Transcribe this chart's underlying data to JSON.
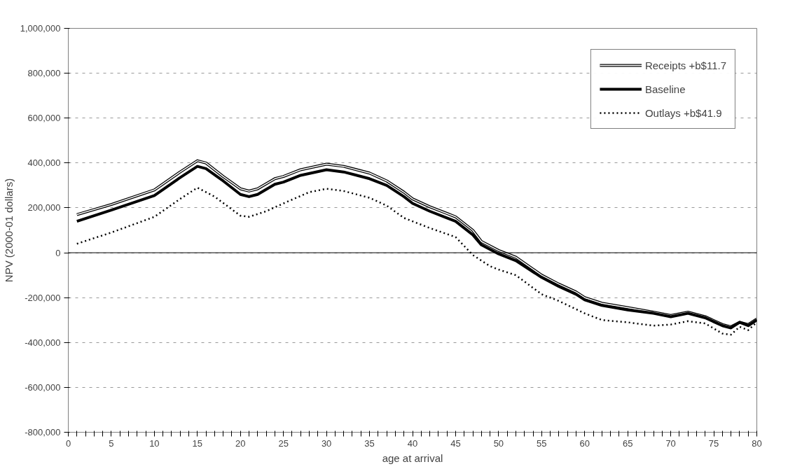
{
  "chart_data": {
    "type": "line",
    "xlabel": "age at arrival",
    "ylabel": "NPV (2000-01 dollars)",
    "xlim": [
      0,
      80
    ],
    "ylim": [
      -800000,
      1000000
    ],
    "xticks": [
      0,
      {
        "value": 1,
        "label": null
      },
      {
        "value": 2,
        "label": null
      },
      {
        "value": 3,
        "label": null
      },
      {
        "value": 4,
        "label": null
      },
      5,
      {
        "value": 6,
        "label": null
      },
      {
        "value": 7,
        "label": null
      },
      {
        "value": 8,
        "label": null
      },
      {
        "value": 9,
        "label": null
      },
      10,
      {
        "value": 11,
        "label": null
      },
      {
        "value": 12,
        "label": null
      },
      {
        "value": 13,
        "label": null
      },
      {
        "value": 14,
        "label": null
      },
      15,
      {
        "value": 16,
        "label": null
      },
      {
        "value": 17,
        "label": null
      },
      {
        "value": 18,
        "label": null
      },
      {
        "value": 19,
        "label": null
      },
      20,
      {
        "value": 21,
        "label": null
      },
      {
        "value": 22,
        "label": null
      },
      {
        "value": 23,
        "label": null
      },
      {
        "value": 24,
        "label": null
      },
      25,
      {
        "value": 26,
        "label": null
      },
      {
        "value": 27,
        "label": null
      },
      {
        "value": 28,
        "label": null
      },
      {
        "value": 29,
        "label": null
      },
      30,
      {
        "value": 31,
        "label": null
      },
      {
        "value": 32,
        "label": null
      },
      {
        "value": 33,
        "label": null
      },
      {
        "value": 34,
        "label": null
      },
      35,
      {
        "value": 36,
        "label": null
      },
      {
        "value": 37,
        "label": null
      },
      {
        "value": 38,
        "label": null
      },
      {
        "value": 39,
        "label": null
      },
      40,
      {
        "value": 41,
        "label": null
      },
      {
        "value": 42,
        "label": null
      },
      {
        "value": 43,
        "label": null
      },
      {
        "value": 44,
        "label": null
      },
      45,
      {
        "value": 46,
        "label": null
      },
      {
        "value": 47,
        "label": null
      },
      {
        "value": 48,
        "label": null
      },
      {
        "value": 49,
        "label": null
      },
      50,
      {
        "value": 51,
        "label": null
      },
      {
        "value": 52,
        "label": null
      },
      {
        "value": 53,
        "label": null
      },
      {
        "value": 54,
        "label": null
      },
      55,
      {
        "value": 56,
        "label": null
      },
      {
        "value": 57,
        "label": null
      },
      {
        "value": 58,
        "label": null
      },
      {
        "value": 59,
        "label": null
      },
      60,
      {
        "value": 61,
        "label": null
      },
      {
        "value": 62,
        "label": null
      },
      {
        "value": 63,
        "label": null
      },
      {
        "value": 64,
        "label": null
      },
      65,
      {
        "value": 66,
        "label": null
      },
      {
        "value": 67,
        "label": null
      },
      {
        "value": 68,
        "label": null
      },
      {
        "value": 69,
        "label": null
      },
      70,
      {
        "value": 71,
        "label": null
      },
      {
        "value": 72,
        "label": null
      },
      {
        "value": 73,
        "label": null
      },
      {
        "value": 74,
        "label": null
      },
      75,
      {
        "value": 76,
        "label": null
      },
      {
        "value": 77,
        "label": null
      },
      {
        "value": 78,
        "label": null
      },
      {
        "value": 79,
        "label": null
      },
      80
    ],
    "yticks": [
      {
        "value": -800000,
        "label": "-800,000"
      },
      {
        "value": -600000,
        "label": "-600,000"
      },
      {
        "value": -400000,
        "label": "-400,000"
      },
      {
        "value": -200000,
        "label": "-200,000"
      },
      0,
      {
        "value": 200000,
        "label": "200,000"
      },
      {
        "value": 400000,
        "label": "400,000"
      },
      {
        "value": 600000,
        "label": "600,000"
      },
      {
        "value": 800000,
        "label": "800,000"
      },
      {
        "value": 1000000,
        "label": "1,000,000"
      }
    ],
    "grid": "y",
    "legend": "top right",
    "marker": "none",
    "ref_lines": [
      {
        "axis": "y",
        "value": 0,
        "label": null,
        "color": "#000000"
      }
    ],
    "series": [
      {
        "name": "Receipts +b$11.7",
        "color": "#000000",
        "line_style": "solid",
        "x": [
          1,
          5,
          10,
          13,
          15,
          16,
          18,
          20,
          21,
          22,
          24,
          25,
          27,
          30,
          32,
          35,
          37,
          39,
          40,
          42,
          44,
          45,
          47,
          48,
          50,
          52,
          55,
          57,
          59,
          60,
          62,
          65,
          68,
          70,
          72,
          74,
          76,
          77,
          78,
          79,
          80
        ],
        "values": [
          170000,
          215000,
          280000,
          360000,
          410000,
          400000,
          340000,
          285000,
          275000,
          285000,
          330000,
          340000,
          370000,
          395000,
          385000,
          355000,
          320000,
          270000,
          240000,
          205000,
          175000,
          160000,
          100000,
          50000,
          10000,
          -20000,
          -100000,
          -140000,
          -175000,
          -200000,
          -225000,
          -245000,
          -265000,
          -280000,
          -265000,
          -285000,
          -320000,
          -330000,
          -310000,
          -320000,
          -295000
        ]
      },
      {
        "name": "Baseline",
        "color": "#000000",
        "line_style": "solid",
        "x": [
          1,
          5,
          10,
          13,
          15,
          16,
          18,
          20,
          21,
          22,
          24,
          25,
          27,
          30,
          32,
          35,
          37,
          39,
          40,
          42,
          44,
          45,
          47,
          48,
          50,
          52,
          55,
          57,
          59,
          60,
          62,
          65,
          68,
          70,
          72,
          74,
          76,
          77,
          78,
          79,
          80
        ],
        "values": [
          140000,
          190000,
          255000,
          335000,
          385000,
          375000,
          320000,
          260000,
          250000,
          260000,
          305000,
          315000,
          345000,
          370000,
          360000,
          330000,
          300000,
          250000,
          220000,
          185000,
          155000,
          140000,
          80000,
          35000,
          -5000,
          -35000,
          -110000,
          -150000,
          -185000,
          -210000,
          -235000,
          -255000,
          -270000,
          -285000,
          -270000,
          -290000,
          -325000,
          -335000,
          -310000,
          -325000,
          -300000
        ]
      },
      {
        "name": "Outlays +b$41.9",
        "color": "#000000",
        "line_style": "dotted",
        "x": [
          1,
          5,
          10,
          13,
          15,
          17,
          20,
          21,
          23,
          25,
          28,
          30,
          32,
          35,
          37,
          39,
          42,
          45,
          47,
          49,
          50,
          52,
          55,
          57,
          60,
          62,
          65,
          68,
          70,
          72,
          74,
          76,
          77,
          78,
          79,
          80
        ],
        "values": [
          40000,
          90000,
          160000,
          240000,
          290000,
          250000,
          165000,
          160000,
          185000,
          220000,
          270000,
          285000,
          275000,
          245000,
          210000,
          155000,
          110000,
          70000,
          -10000,
          -60000,
          -75000,
          -100000,
          -185000,
          -215000,
          -270000,
          -300000,
          -310000,
          -325000,
          -320000,
          -305000,
          -315000,
          -360000,
          -365000,
          -330000,
          -345000,
          -310000
        ]
      }
    ]
  }
}
